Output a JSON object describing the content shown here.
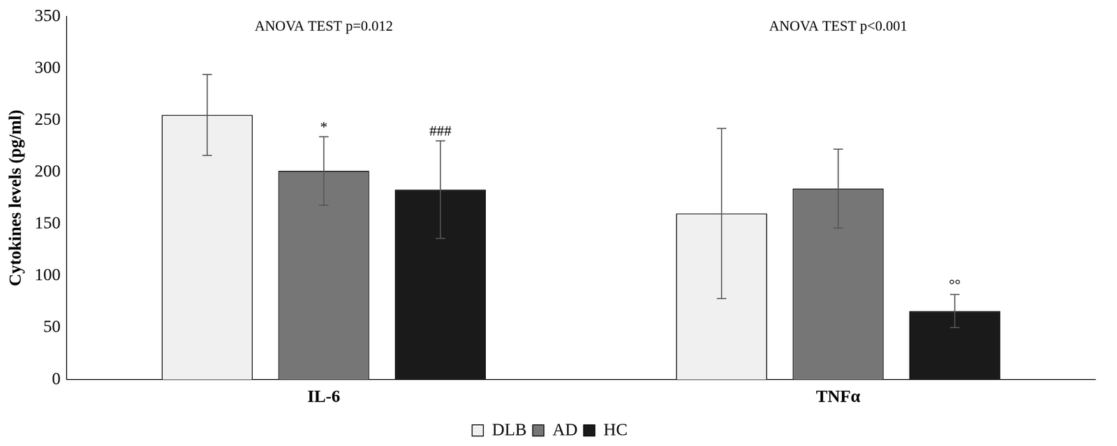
{
  "chart_data": {
    "type": "bar",
    "y_label": "Cytokines levels (pg/ml)",
    "categories": [
      "IL-6",
      "TNFα"
    ],
    "series": [
      {
        "name": "DLB",
        "color": "#f0f0f0",
        "values": [
          255,
          160
        ],
        "errors": [
          39,
          82
        ],
        "significance": [
          null,
          null
        ]
      },
      {
        "name": "AD",
        "color": "#767676",
        "values": [
          201,
          184
        ],
        "errors": [
          33,
          38
        ],
        "significance": [
          "*",
          null
        ]
      },
      {
        "name": "HC",
        "color": "#1a1a1a",
        "values": [
          183,
          66
        ],
        "errors": [
          47,
          16
        ],
        "significance": [
          "###",
          "°°"
        ]
      }
    ],
    "annotations": [
      {
        "text": "ANOVA TEST p=0.012",
        "category": "IL-6"
      },
      {
        "text": "ANOVA TEST p<0.001",
        "category": "TNFα"
      }
    ],
    "ylim": [
      0,
      350
    ],
    "yticks": [
      0,
      50,
      100,
      150,
      200,
      250,
      300,
      350
    ],
    "grid": false,
    "legend": "bottom"
  }
}
